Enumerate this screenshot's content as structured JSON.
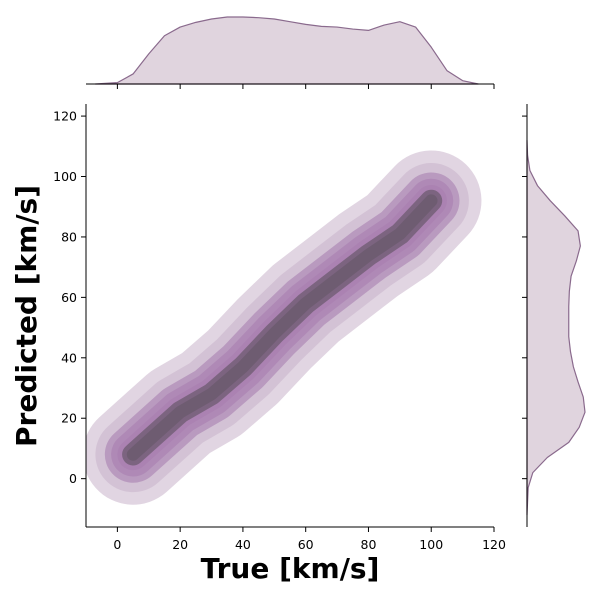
{
  "chart_data": {
    "type": "jointplot-kde",
    "xlabel": "True [km/s]",
    "ylabel": "Predicted [km/s]",
    "xlim": [
      -10,
      120
    ],
    "ylim": [
      -16,
      124
    ],
    "xticks": [
      0,
      20,
      40,
      60,
      80,
      100,
      120
    ],
    "yticks": [
      0,
      20,
      40,
      60,
      80,
      100,
      120
    ],
    "colors": {
      "fill_light": "#c9b3cb",
      "fill_mid": "#a97fb0",
      "fill_dark": "#6c5a6f",
      "marginal_fill": "#e0d4de",
      "marginal_line": "#8a6a8d",
      "axis": "#000000"
    },
    "joint_density": {
      "ridge": [
        {
          "x": 5,
          "y": 8
        },
        {
          "x": 20,
          "y": 22
        },
        {
          "x": 30,
          "y": 28
        },
        {
          "x": 40,
          "y": 37
        },
        {
          "x": 50,
          "y": 48
        },
        {
          "x": 60,
          "y": 58
        },
        {
          "x": 70,
          "y": 66
        },
        {
          "x": 80,
          "y": 74
        },
        {
          "x": 90,
          "y": 81
        },
        {
          "x": 100,
          "y": 92
        }
      ],
      "levels": [
        {
          "width": 16,
          "opacity": 0.55
        },
        {
          "width": 12,
          "opacity": 0.55
        },
        {
          "width": 9,
          "opacity": 0.6
        },
        {
          "width": 7,
          "opacity": 0.65
        },
        {
          "width": 5,
          "opacity": 0.7
        },
        {
          "width": 3.5,
          "opacity": 0.75
        },
        {
          "width": 2,
          "opacity": 0.85
        }
      ]
    },
    "marginal_x": {
      "x": [
        -7,
        0,
        5,
        10,
        15,
        20,
        25,
        30,
        35,
        40,
        45,
        50,
        55,
        60,
        65,
        70,
        75,
        80,
        85,
        90,
        95,
        100,
        105,
        110,
        115
      ],
      "density": [
        0.0,
        0.02,
        0.15,
        0.45,
        0.72,
        0.85,
        0.92,
        0.97,
        1.0,
        1.0,
        0.99,
        0.97,
        0.93,
        0.89,
        0.86,
        0.85,
        0.82,
        0.8,
        0.88,
        0.93,
        0.85,
        0.55,
        0.2,
        0.05,
        0.0
      ]
    },
    "marginal_y": {
      "y": [
        -12,
        -3,
        2,
        7,
        12,
        17,
        22,
        27,
        32,
        37,
        42,
        47,
        52,
        57,
        62,
        67,
        72,
        77,
        82,
        87,
        92,
        97,
        102,
        107,
        112
      ],
      "density": [
        0.0,
        0.02,
        0.1,
        0.35,
        0.72,
        0.9,
        1.0,
        0.97,
        0.88,
        0.8,
        0.75,
        0.72,
        0.72,
        0.72,
        0.73,
        0.76,
        0.85,
        0.92,
        0.88,
        0.65,
        0.4,
        0.18,
        0.05,
        0.01,
        0.0
      ]
    }
  }
}
